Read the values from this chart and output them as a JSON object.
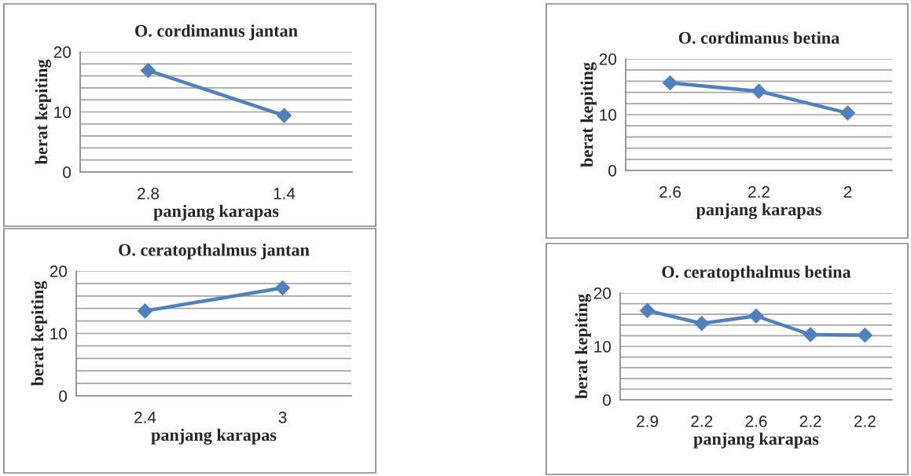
{
  "chart_data": [
    {
      "type": "line",
      "title": "O. cordimanus jantan",
      "xlabel": "panjang karapas",
      "ylabel": "berat kepiting",
      "categories": [
        "2.8",
        "1.4"
      ],
      "values": [
        16.9,
        9.4
      ],
      "color": "#4f81bd",
      "marker": "diamond",
      "ylim": [
        0,
        20
      ],
      "yticks": [
        0,
        {
          "value": 2,
          "label": null
        },
        {
          "value": 4,
          "label": null
        },
        {
          "value": 6,
          "label": null
        },
        {
          "value": 8,
          "label": null
        },
        10,
        {
          "value": 12,
          "label": null
        },
        {
          "value": 14,
          "label": null
        },
        {
          "value": 16,
          "label": null
        },
        {
          "value": 18,
          "label": null
        },
        20
      ],
      "grid": "y",
      "legend": false
    },
    {
      "type": "line",
      "title": "O. cordimanus betina",
      "xlabel": "panjang karapas",
      "ylabel": "berat kepiting",
      "categories": [
        "2.6",
        "2.2",
        "2"
      ],
      "values": [
        15.7,
        14.2,
        10.3
      ],
      "color": "#4f81bd",
      "marker": "diamond",
      "ylim": [
        0,
        20
      ],
      "yticks": [
        0,
        {
          "value": 2,
          "label": null
        },
        {
          "value": 4,
          "label": null
        },
        {
          "value": 6,
          "label": null
        },
        {
          "value": 8,
          "label": null
        },
        10,
        {
          "value": 12,
          "label": null
        },
        {
          "value": 14,
          "label": null
        },
        {
          "value": 16,
          "label": null
        },
        {
          "value": 18,
          "label": null
        },
        20
      ],
      "grid": "y",
      "legend": false
    },
    {
      "type": "line",
      "title": "O. ceratopthalmus jantan",
      "xlabel": "panjang karapas",
      "ylabel": "berat kepiting",
      "categories": [
        "2.4",
        "3"
      ],
      "values": [
        13.6,
        17.3
      ],
      "color": "#4f81bd",
      "marker": "diamond",
      "ylim": [
        0,
        20
      ],
      "yticks": [
        0,
        {
          "value": 2,
          "label": null
        },
        {
          "value": 4,
          "label": null
        },
        {
          "value": 6,
          "label": null
        },
        {
          "value": 8,
          "label": null
        },
        10,
        {
          "value": 12,
          "label": null
        },
        {
          "value": 14,
          "label": null
        },
        {
          "value": 16,
          "label": null
        },
        {
          "value": 18,
          "label": null
        },
        20
      ],
      "grid": "y",
      "legend": false
    },
    {
      "type": "line",
      "title": "O. ceratopthalmus betina",
      "xlabel": "panjang karapas",
      "ylabel": "berat kepiting",
      "categories": [
        "2.9",
        "2.2",
        "2.6",
        "2.2",
        "2.2"
      ],
      "values": [
        16.7,
        14.3,
        15.7,
        12.2,
        12.1
      ],
      "color": "#4f81bd",
      "marker": "diamond",
      "ylim": [
        0,
        20
      ],
      "yticks": [
        0,
        {
          "value": 2,
          "label": null
        },
        {
          "value": 4,
          "label": null
        },
        {
          "value": 6,
          "label": null
        },
        {
          "value": 8,
          "label": null
        },
        10,
        {
          "value": 12,
          "label": null
        },
        {
          "value": 14,
          "label": null
        },
        {
          "value": 16,
          "label": null
        },
        {
          "value": 18,
          "label": null
        },
        20
      ],
      "grid": "y",
      "legend": false
    }
  ]
}
